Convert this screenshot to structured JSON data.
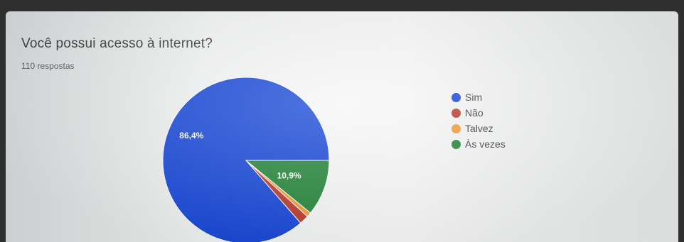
{
  "question": "Você possui acesso à internet?",
  "responses_count": "110 respostas",
  "chart_data": {
    "type": "pie",
    "title": "Você possui acesso à internet?",
    "subtitle": "110 respostas",
    "categories": [
      "Sim",
      "Não",
      "Talvez",
      "Às vezes"
    ],
    "values": [
      86.4,
      1.8,
      0.9,
      10.9
    ],
    "labels": [
      "86,4%",
      "",
      "",
      "10,9%"
    ],
    "colors": [
      "#1646d6",
      "#b93a2c",
      "#f19a38",
      "#24853a"
    ],
    "legend_position": "right"
  }
}
